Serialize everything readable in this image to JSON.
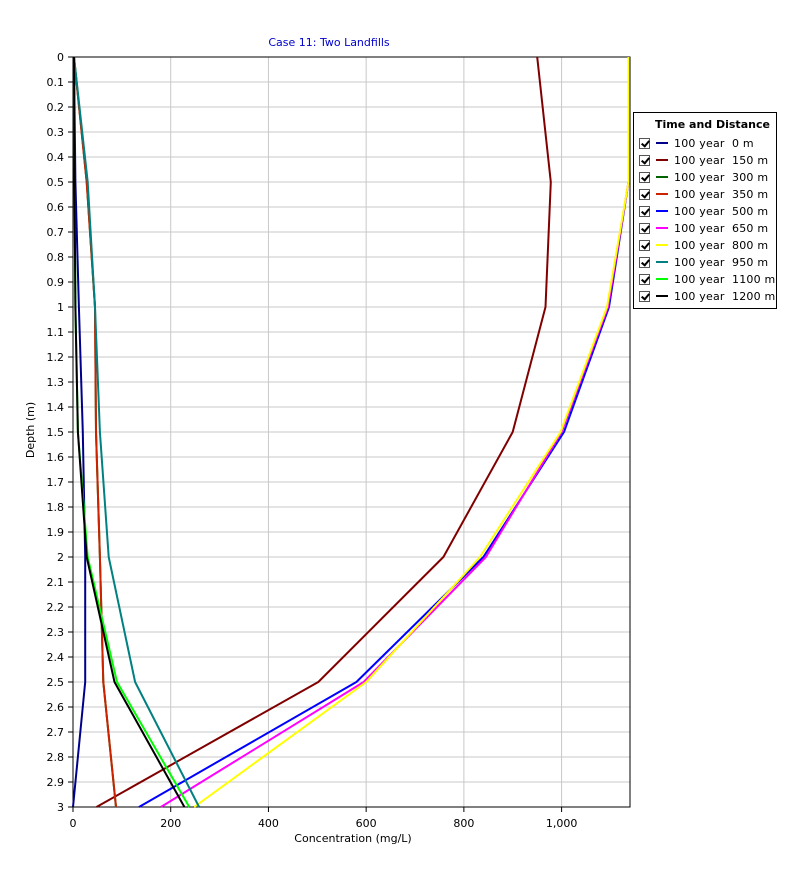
{
  "chart_data": {
    "type": "line",
    "title": "Case 11: Two Landfills",
    "xlabel": "Concentration (mg/L)",
    "ylabel": "Depth (m)",
    "xlim": [
      0,
      1140
    ],
    "ylim": [
      0,
      3
    ],
    "y_inverted": true,
    "grid": true,
    "x_ticks": [
      0,
      200,
      400,
      600,
      800,
      1000
    ],
    "x_tick_labels": [
      "0",
      "200",
      "400",
      "600",
      "800",
      "1,000"
    ],
    "y_ticks": [
      0,
      0.1,
      0.2,
      0.3,
      0.4,
      0.5,
      0.6,
      0.7,
      0.8,
      0.9,
      1,
      1.1,
      1.2,
      1.3,
      1.4,
      1.5,
      1.6,
      1.7,
      1.8,
      1.9,
      2,
      2.1,
      2.2,
      2.3,
      2.4,
      2.5,
      2.6,
      2.7,
      2.8,
      2.9,
      3
    ],
    "y_tick_labels": [
      "0",
      "0.1",
      "0.2",
      "0.3",
      "0.4",
      "0.5",
      "0.6",
      "0.7",
      "0.8",
      "0.9",
      "1",
      "1.1",
      "1.2",
      "1.3",
      "1.4",
      "1.5",
      "1.6",
      "1.7",
      "1.8",
      "1.9",
      "2",
      "2.1",
      "2.2",
      "2.3",
      "2.4",
      "2.5",
      "2.6",
      "2.7",
      "2.8",
      "2.9",
      "3"
    ],
    "legend_title": "Time and Distance",
    "legend_position": "right",
    "series": [
      {
        "name": "100 year  0 m",
        "color": "#00008B",
        "points": [
          [
            2,
            0
          ],
          [
            5,
            0.5
          ],
          [
            12,
            1
          ],
          [
            20,
            1.5
          ],
          [
            25,
            2
          ],
          [
            25,
            2.5
          ],
          [
            0,
            3
          ]
        ]
      },
      {
        "name": "100 year  150 m",
        "color": "#800000",
        "points": [
          [
            950,
            0
          ],
          [
            978,
            0.5
          ],
          [
            967,
            1
          ],
          [
            900,
            1.5
          ],
          [
            758,
            2
          ],
          [
            502,
            2.5
          ],
          [
            48,
            3
          ]
        ]
      },
      {
        "name": "100 year  300 m",
        "color": "#006400",
        "points": [
          [
            2,
            0
          ],
          [
            28,
            0.5
          ],
          [
            45,
            1
          ],
          [
            47,
            1.5
          ],
          [
            55,
            2
          ],
          [
            62,
            2.5
          ],
          [
            88,
            3
          ]
        ]
      },
      {
        "name": "100 year  350 m",
        "color": "#CC2200",
        "points": [
          [
            2,
            0
          ],
          [
            28,
            0.5
          ],
          [
            45,
            1
          ],
          [
            47,
            1.5
          ],
          [
            55,
            2
          ],
          [
            62,
            2.5
          ],
          [
            88,
            3
          ]
        ]
      },
      {
        "name": "100 year  500 m",
        "color": "#0000FF",
        "points": [
          [
            1137,
            0
          ],
          [
            1137,
            0.5
          ],
          [
            1097,
            1
          ],
          [
            1005,
            1.5
          ],
          [
            840,
            2
          ],
          [
            580,
            2.5
          ],
          [
            135,
            3
          ]
        ]
      },
      {
        "name": "100 year  650 m",
        "color": "#FF00FF",
        "points": [
          [
            1137,
            0
          ],
          [
            1137,
            0.5
          ],
          [
            1095,
            1
          ],
          [
            1000,
            1.5
          ],
          [
            845,
            2
          ],
          [
            595,
            2.5
          ],
          [
            180,
            3
          ]
        ]
      },
      {
        "name": "100 year  800 m",
        "color": "#FFFF00",
        "points": [
          [
            1137,
            0
          ],
          [
            1137,
            0.5
          ],
          [
            1093,
            1
          ],
          [
            998,
            1.5
          ],
          [
            833,
            2
          ],
          [
            600,
            2.5
          ],
          [
            248,
            3
          ]
        ]
      },
      {
        "name": "100 year  950 m",
        "color": "#008080",
        "points": [
          [
            2,
            0
          ],
          [
            30,
            0.5
          ],
          [
            45,
            1
          ],
          [
            55,
            1.5
          ],
          [
            73,
            2
          ],
          [
            127,
            2.5
          ],
          [
            258,
            3
          ]
        ]
      },
      {
        "name": "100 year  1100 m",
        "color": "#00FF00",
        "points": [
          [
            2,
            0
          ],
          [
            3,
            0.5
          ],
          [
            5,
            1
          ],
          [
            10,
            1.5
          ],
          [
            30,
            2
          ],
          [
            90,
            2.5
          ],
          [
            238,
            3
          ]
        ]
      },
      {
        "name": "100 year  1200 m",
        "color": "#000000",
        "points": [
          [
            2,
            0
          ],
          [
            3,
            0.5
          ],
          [
            5,
            1
          ],
          [
            10,
            1.5
          ],
          [
            28,
            2
          ],
          [
            85,
            2.5
          ],
          [
            228,
            3
          ]
        ]
      }
    ]
  }
}
